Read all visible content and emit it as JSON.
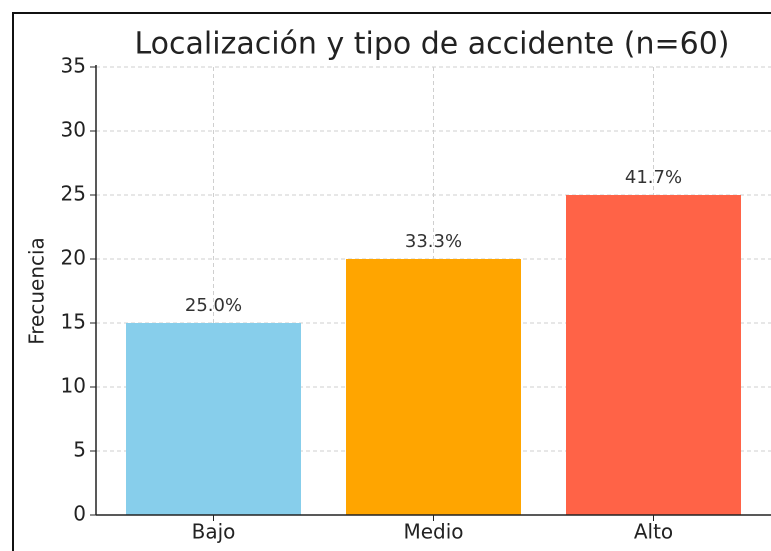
{
  "chart_data": {
    "type": "bar",
    "title": "Localización y tipo de accidente (n=60)",
    "y_label": "Frecuencia",
    "categories": [
      "Bajo",
      "Medio",
      "Alto"
    ],
    "values": [
      15,
      20,
      25
    ],
    "colors": [
      "#87ceeb",
      "#ffa500",
      "#ff6347"
    ],
    "annotations": [
      "25.0%",
      "33.3%",
      "41.7%"
    ],
    "ylim": [
      0,
      35
    ],
    "yticks": [
      0,
      5,
      10,
      15,
      20,
      25,
      30,
      35
    ],
    "grid": true
  }
}
